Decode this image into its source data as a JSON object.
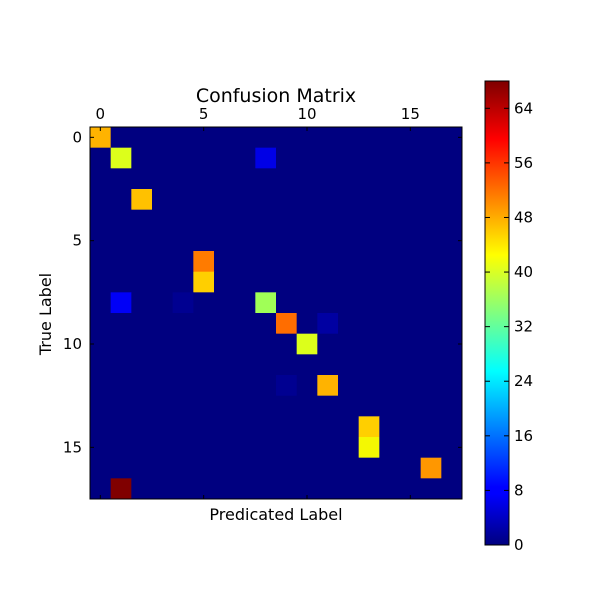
{
  "chart_data": {
    "type": "heatmap",
    "title": "Confusion Matrix",
    "xlabel": "Predicated Label",
    "ylabel": "True Label",
    "x_ticks": [
      "0",
      "5",
      "10",
      "15"
    ],
    "y_ticks": [
      "0",
      "5",
      "10",
      "15"
    ],
    "n_rows": 18,
    "n_cols": 18,
    "colormap": "jet",
    "colorbar": {
      "min": 0,
      "max": 68,
      "ticks": [
        "0",
        "8",
        "16",
        "24",
        "32",
        "40",
        "48",
        "56",
        "64"
      ]
    },
    "nonzero_cells": [
      {
        "row": 0,
        "col": 0,
        "value": 49
      },
      {
        "row": 1,
        "col": 1,
        "value": 42
      },
      {
        "row": 1,
        "col": 8,
        "value": 6
      },
      {
        "row": 3,
        "col": 2,
        "value": 48
      },
      {
        "row": 6,
        "col": 5,
        "value": 53
      },
      {
        "row": 7,
        "col": 5,
        "value": 47
      },
      {
        "row": 8,
        "col": 1,
        "value": 7
      },
      {
        "row": 8,
        "col": 4,
        "value": 1
      },
      {
        "row": 8,
        "col": 8,
        "value": 37
      },
      {
        "row": 9,
        "col": 9,
        "value": 54
      },
      {
        "row": 9,
        "col": 11,
        "value": 2
      },
      {
        "row": 10,
        "col": 10,
        "value": 42
      },
      {
        "row": 12,
        "col": 9,
        "value": 1
      },
      {
        "row": 12,
        "col": 11,
        "value": 49
      },
      {
        "row": 14,
        "col": 13,
        "value": 47
      },
      {
        "row": 15,
        "col": 13,
        "value": 44
      },
      {
        "row": 16,
        "col": 16,
        "value": 51
      },
      {
        "row": 17,
        "col": 1,
        "value": 68
      }
    ]
  }
}
